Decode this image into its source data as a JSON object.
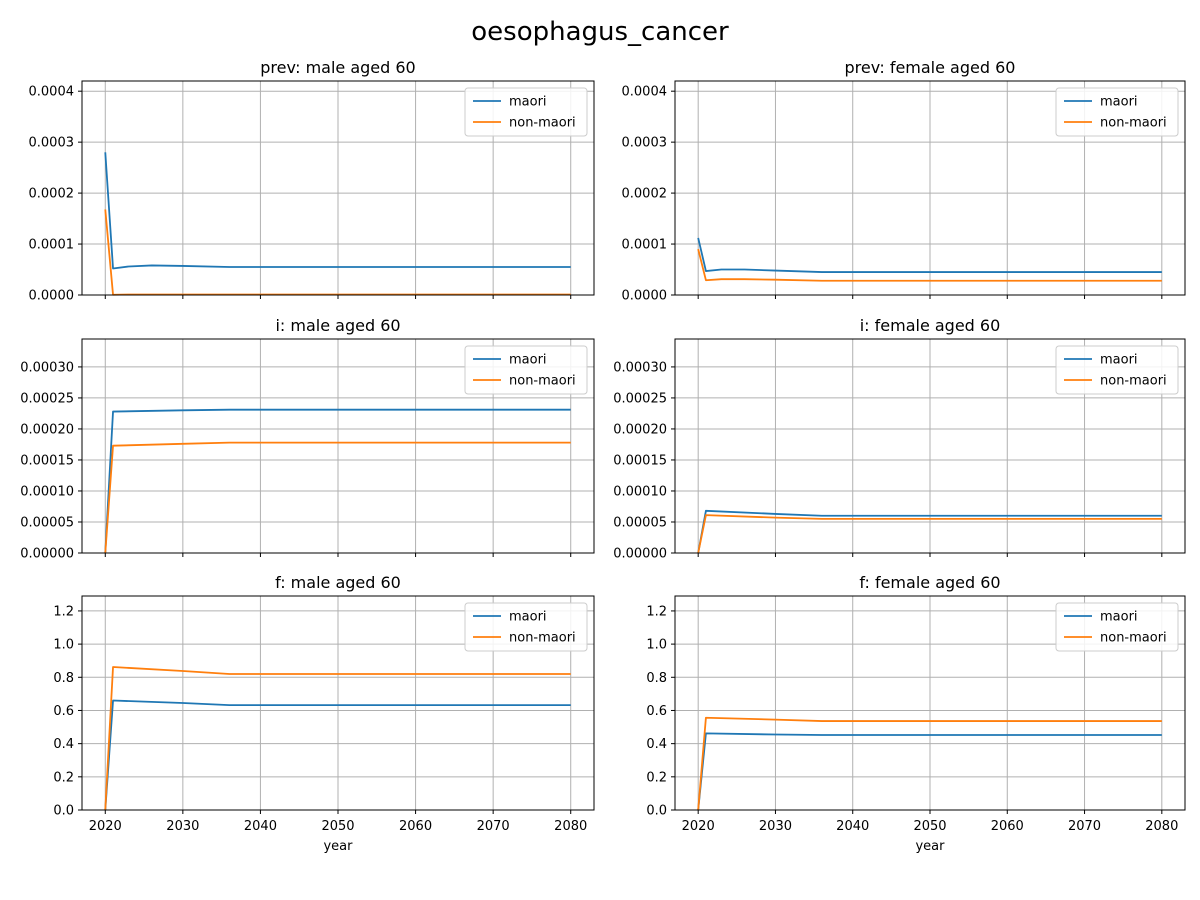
{
  "figure": {
    "title": "oesophagus_cancer"
  },
  "colors": {
    "maori": "#1f77b4",
    "non_maori": "#ff7f0e",
    "grid": "#b0b0b0"
  },
  "chart_data": [
    {
      "type": "line",
      "title": "prev: male aged 60",
      "xlabel": "",
      "ylabel": "",
      "xlim": [
        2017,
        2083
      ],
      "ylim": [
        0,
        0.00042
      ],
      "xticks": [
        2020,
        2030,
        2040,
        2050,
        2060,
        2070,
        2080
      ],
      "xtick_labels_visible": false,
      "yticks": [
        0,
        0.0001,
        0.0002,
        0.0003,
        0.0004
      ],
      "ytick_labels": [
        "0.0000",
        "0.0001",
        "0.0002",
        "0.0003",
        "0.0004"
      ],
      "grid": true,
      "legend": "top-right",
      "series": [
        {
          "name": "maori",
          "x": [
            2020,
            2021,
            2023,
            2026,
            2030,
            2036,
            2040,
            2050,
            2060,
            2070,
            2080
          ],
          "y": [
            0.00028,
            5.2e-05,
            5.6e-05,
            5.8e-05,
            5.7e-05,
            5.5e-05,
            5.5e-05,
            5.5e-05,
            5.5e-05,
            5.5e-05,
            5.5e-05
          ]
        },
        {
          "name": "non-maori",
          "x": [
            2020,
            2021,
            2023,
            2030,
            2040,
            2050,
            2060,
            2070,
            2080
          ],
          "y": [
            0.000168,
            5e-07,
            1e-06,
            1e-06,
            1e-06,
            1e-06,
            1e-06,
            1e-06,
            1e-06
          ]
        }
      ]
    },
    {
      "type": "line",
      "title": "prev: female aged 60",
      "xlabel": "",
      "ylabel": "",
      "xlim": [
        2017,
        2083
      ],
      "ylim": [
        0,
        0.00042
      ],
      "xticks": [
        2020,
        2030,
        2040,
        2050,
        2060,
        2070,
        2080
      ],
      "xtick_labels_visible": false,
      "yticks": [
        0,
        0.0001,
        0.0002,
        0.0003,
        0.0004
      ],
      "ytick_labels": [
        "0.0000",
        "0.0001",
        "0.0002",
        "0.0003",
        "0.0004"
      ],
      "grid": true,
      "legend": "top-right",
      "series": [
        {
          "name": "maori",
          "x": [
            2020,
            2021,
            2023,
            2026,
            2030,
            2036,
            2040,
            2050,
            2060,
            2070,
            2080
          ],
          "y": [
            0.000112,
            4.7e-05,
            5e-05,
            5e-05,
            4.8e-05,
            4.5e-05,
            4.5e-05,
            4.5e-05,
            4.5e-05,
            4.5e-05,
            4.5e-05
          ]
        },
        {
          "name": "non-maori",
          "x": [
            2020,
            2021,
            2023,
            2026,
            2030,
            2036,
            2040,
            2050,
            2060,
            2070,
            2080
          ],
          "y": [
            9e-05,
            2.9e-05,
            3.1e-05,
            3.1e-05,
            3e-05,
            2.8e-05,
            2.8e-05,
            2.8e-05,
            2.8e-05,
            2.8e-05,
            2.8e-05
          ]
        }
      ]
    },
    {
      "type": "line",
      "title": "i: male aged 60",
      "xlabel": "",
      "ylabel": "",
      "xlim": [
        2017,
        2083
      ],
      "ylim": [
        0,
        0.000345
      ],
      "xticks": [
        2020,
        2030,
        2040,
        2050,
        2060,
        2070,
        2080
      ],
      "xtick_labels_visible": false,
      "yticks": [
        0,
        5e-05,
        0.0001,
        0.00015,
        0.0002,
        0.00025,
        0.0003
      ],
      "ytick_labels": [
        "0.00000",
        "0.00005",
        "0.00010",
        "0.00015",
        "0.00020",
        "0.00025",
        "0.00030"
      ],
      "grid": true,
      "legend": "top-right",
      "series": [
        {
          "name": "maori",
          "x": [
            2020,
            2021,
            2030,
            2036,
            2040,
            2050,
            2060,
            2070,
            2080
          ],
          "y": [
            0,
            0.000228,
            0.00023,
            0.000231,
            0.000231,
            0.000231,
            0.000231,
            0.000231,
            0.000231
          ]
        },
        {
          "name": "non-maori",
          "x": [
            2020,
            2021,
            2030,
            2036,
            2040,
            2050,
            2060,
            2070,
            2080
          ],
          "y": [
            0,
            0.000173,
            0.000176,
            0.000178,
            0.000178,
            0.000178,
            0.000178,
            0.000178,
            0.000178
          ]
        }
      ]
    },
    {
      "type": "line",
      "title": "i: female aged 60",
      "xlabel": "",
      "ylabel": "",
      "xlim": [
        2017,
        2083
      ],
      "ylim": [
        0,
        0.000345
      ],
      "xticks": [
        2020,
        2030,
        2040,
        2050,
        2060,
        2070,
        2080
      ],
      "xtick_labels_visible": false,
      "yticks": [
        0,
        5e-05,
        0.0001,
        0.00015,
        0.0002,
        0.00025,
        0.0003
      ],
      "ytick_labels": [
        "0.00000",
        "0.00005",
        "0.00010",
        "0.00015",
        "0.00020",
        "0.00025",
        "0.00030"
      ],
      "grid": true,
      "legend": "top-right",
      "series": [
        {
          "name": "maori",
          "x": [
            2020,
            2021,
            2030,
            2036,
            2040,
            2050,
            2060,
            2070,
            2080
          ],
          "y": [
            0,
            6.8e-05,
            6.3e-05,
            6e-05,
            6e-05,
            6e-05,
            6e-05,
            6e-05,
            6e-05
          ]
        },
        {
          "name": "non-maori",
          "x": [
            2020,
            2021,
            2030,
            2036,
            2040,
            2050,
            2060,
            2070,
            2080
          ],
          "y": [
            0,
            6.1e-05,
            5.7e-05,
            5.5e-05,
            5.5e-05,
            5.5e-05,
            5.5e-05,
            5.5e-05,
            5.5e-05
          ]
        }
      ]
    },
    {
      "type": "line",
      "title": "f: male aged 60",
      "xlabel": "year",
      "ylabel": "",
      "xlim": [
        2017,
        2083
      ],
      "ylim": [
        0,
        1.29
      ],
      "xticks": [
        2020,
        2030,
        2040,
        2050,
        2060,
        2070,
        2080
      ],
      "xtick_labels_visible": true,
      "xtick_labels": [
        "2020",
        "2030",
        "2040",
        "2050",
        "2060",
        "2070",
        "2080"
      ],
      "yticks": [
        0,
        0.2,
        0.4,
        0.6,
        0.8,
        1.0,
        1.2
      ],
      "ytick_labels": [
        "0.0",
        "0.2",
        "0.4",
        "0.6",
        "0.8",
        "1.0",
        "1.2"
      ],
      "grid": true,
      "legend": "top-right",
      "series": [
        {
          "name": "maori",
          "x": [
            2020,
            2021,
            2030,
            2036,
            2040,
            2050,
            2060,
            2070,
            2080
          ],
          "y": [
            0,
            0.66,
            0.645,
            0.632,
            0.632,
            0.632,
            0.632,
            0.632,
            0.632
          ]
        },
        {
          "name": "non-maori",
          "x": [
            2020,
            2021,
            2030,
            2036,
            2040,
            2050,
            2060,
            2070,
            2080
          ],
          "y": [
            0,
            0.862,
            0.838,
            0.82,
            0.82,
            0.82,
            0.82,
            0.82,
            0.82
          ]
        }
      ]
    },
    {
      "type": "line",
      "title": "f: female aged 60",
      "xlabel": "year",
      "ylabel": "",
      "xlim": [
        2017,
        2083
      ],
      "ylim": [
        0,
        1.29
      ],
      "xticks": [
        2020,
        2030,
        2040,
        2050,
        2060,
        2070,
        2080
      ],
      "xtick_labels_visible": true,
      "xtick_labels": [
        "2020",
        "2030",
        "2040",
        "2050",
        "2060",
        "2070",
        "2080"
      ],
      "yticks": [
        0,
        0.2,
        0.4,
        0.6,
        0.8,
        1.0,
        1.2
      ],
      "ytick_labels": [
        "0.0",
        "0.2",
        "0.4",
        "0.6",
        "0.8",
        "1.0",
        "1.2"
      ],
      "grid": true,
      "legend": "top-right",
      "series": [
        {
          "name": "maori",
          "x": [
            2020,
            2021,
            2030,
            2036,
            2040,
            2050,
            2060,
            2070,
            2080
          ],
          "y": [
            0,
            0.462,
            0.455,
            0.452,
            0.452,
            0.452,
            0.452,
            0.452,
            0.452
          ]
        },
        {
          "name": "non-maori",
          "x": [
            2020,
            2021,
            2030,
            2036,
            2040,
            2050,
            2060,
            2070,
            2080
          ],
          "y": [
            0,
            0.556,
            0.545,
            0.536,
            0.536,
            0.536,
            0.536,
            0.536,
            0.536
          ]
        }
      ]
    }
  ]
}
